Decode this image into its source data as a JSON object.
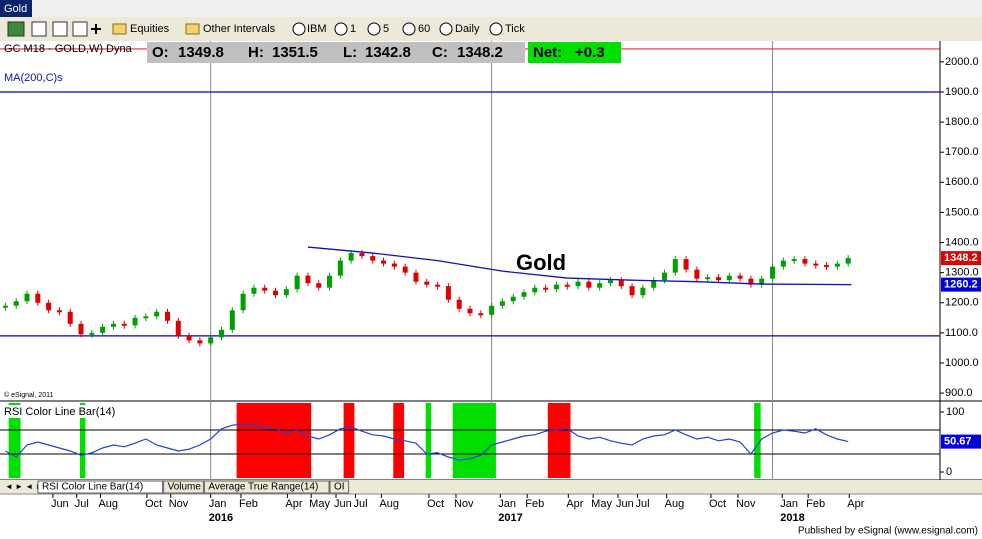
{
  "window_title": "Gold",
  "toolbar": {
    "buttons": [
      "Equities",
      "Other Intervals",
      "IBM",
      "1",
      "5",
      "60",
      "Daily",
      "Tick"
    ]
  },
  "chart_data": [
    {
      "type": "candlestick",
      "symbol": "GC M18 - GOLD,W) Dyna",
      "quote": [
        {
          "label": "O:",
          "value": 1349.8
        },
        {
          "label": "H:",
          "value": 1351.5
        },
        {
          "label": "L:",
          "value": 1342.8
        },
        {
          "label": "C:",
          "value": 1348.2
        }
      ],
      "net": {
        "label": "Net:",
        "value": "+0.3"
      },
      "annotation": "Gold",
      "watermark": "© eSignal, 2011",
      "xlim": [
        -0.5,
        86.5
      ],
      "xticks": [
        {
          "value": 4.4,
          "label": "Jun"
        },
        {
          "value": 6.6,
          "label": "Jul"
        },
        {
          "value": 8.8,
          "label": "Aug"
        },
        {
          "value": 13.1,
          "label": "Oct"
        },
        {
          "value": 15.3,
          "label": "Nov"
        },
        {
          "value": 19.0,
          "label": "Jan"
        },
        {
          "value": 21.8,
          "label": "Feb"
        },
        {
          "value": 26.1,
          "label": "Apr"
        },
        {
          "value": 28.3,
          "label": "May"
        },
        {
          "value": 30.6,
          "label": "Jun"
        },
        {
          "value": 32.4,
          "label": "Jul"
        },
        {
          "value": 34.8,
          "label": "Aug"
        },
        {
          "value": 39.2,
          "label": "Oct"
        },
        {
          "value": 41.7,
          "label": "Nov"
        },
        {
          "value": 45.8,
          "label": "Jan"
        },
        {
          "value": 48.3,
          "label": "Feb"
        },
        {
          "value": 52.1,
          "label": "Apr"
        },
        {
          "value": 54.4,
          "label": "May"
        },
        {
          "value": 56.7,
          "label": "Jun"
        },
        {
          "value": 58.5,
          "label": "Jul"
        },
        {
          "value": 61.2,
          "label": "Aug"
        },
        {
          "value": 65.3,
          "label": "Oct"
        },
        {
          "value": 67.8,
          "label": "Nov"
        },
        {
          "value": 71.9,
          "label": "Jan"
        },
        {
          "value": 74.3,
          "label": "Feb"
        },
        {
          "value": 78.1,
          "label": "Apr"
        }
      ],
      "year_labels": [
        {
          "value": 19.0,
          "label": "2016"
        },
        {
          "value": 45.8,
          "label": "2017"
        },
        {
          "value": 71.9,
          "label": "2018"
        }
      ],
      "separators": [
        19.0,
        45.0,
        71.0
      ],
      "ylim": [
        877,
        2066
      ],
      "yticks": [
        {
          "value": 900,
          "label": "900.0"
        },
        {
          "value": 1000,
          "label": "1000.0"
        },
        {
          "value": 1100,
          "label": "1100.0"
        },
        {
          "value": 1200,
          "label": "1200.0"
        },
        {
          "value": 1300,
          "label": "1300.0"
        },
        {
          "value": 1400,
          "label": "1400.0"
        },
        {
          "value": 1500,
          "label": "1500.0"
        },
        {
          "value": 1600,
          "label": "1600.0"
        },
        {
          "value": 1700,
          "label": "1700.0"
        },
        {
          "value": 1800,
          "label": "1800.0"
        },
        {
          "value": 1900,
          "label": "1900.0"
        },
        {
          "value": 2000,
          "label": "2000.0"
        }
      ],
      "hlines": [
        {
          "value": 2043,
          "color": "#e03030"
        },
        {
          "value": 1900,
          "color": "#0000cc"
        },
        {
          "value": 1090,
          "color": "#0000cc"
        }
      ],
      "series": [
        {
          "up_color": "#00a000",
          "down_color": "#e00000",
          "box_color": "#e00000",
          "values": [
            1190,
            1205,
            1230,
            1200,
            1175,
            1170,
            1130,
            1095,
            1100,
            1120,
            1130,
            1125,
            1150,
            1155,
            1170,
            1140,
            1090,
            1075,
            1065,
            1085,
            1110,
            1175,
            1230,
            1250,
            1240,
            1225,
            1245,
            1290,
            1265,
            1250,
            1290,
            1340,
            1365,
            1355,
            1340,
            1330,
            1320,
            1300,
            1270,
            1260,
            1255,
            1210,
            1180,
            1165,
            1160,
            1190,
            1205,
            1220,
            1235,
            1250,
            1245,
            1260,
            1255,
            1270,
            1250,
            1265,
            1275,
            1255,
            1225,
            1250,
            1275,
            1300,
            1345,
            1310,
            1280,
            1285,
            1275,
            1290,
            1280,
            1260,
            1280,
            1320,
            1340,
            1345,
            1330,
            1325,
            1320,
            1330,
            1348.2
          ]
        },
        {
          "name": "MA(200,C)s",
          "color": "#1010c0",
          "box_color": "#0000dd",
          "x": [
            28,
            34,
            40,
            46,
            52,
            58,
            64,
            70,
            78.3
          ],
          "values": [
            1385,
            1365,
            1340,
            1305,
            1282,
            1275,
            1270,
            1262,
            1260.2
          ]
        }
      ]
    },
    {
      "type": "line",
      "title": "RSI Color Line Bar(14)",
      "color": "#2040e0",
      "box_color": "#0000dd",
      "ylim": [
        -10,
        115
      ],
      "yticks": [
        0,
        100
      ],
      "levels": [
        70,
        30
      ],
      "zones": [
        {
          "start": 21.4,
          "end": 28.3,
          "color": "#ff0000"
        },
        {
          "start": 31.3,
          "end": 32.3,
          "color": "#ff0000"
        },
        {
          "start": 35.9,
          "end": 36.9,
          "color": "#ff0000"
        },
        {
          "start": 50.2,
          "end": 52.3,
          "color": "#ff0000"
        },
        {
          "start": 0.3,
          "end": 1.4,
          "color": "#00e000"
        },
        {
          "start": 6.9,
          "end": 7.4,
          "color": "#00e000"
        },
        {
          "start": 38.9,
          "end": 39.4,
          "color": "#00e000"
        },
        {
          "start": 41.4,
          "end": 45.4,
          "color": "#00e000"
        },
        {
          "start": 69.3,
          "end": 69.9,
          "color": "#00e000"
        }
      ],
      "values": [
        35,
        25,
        45,
        50,
        45,
        40,
        35,
        28,
        32,
        40,
        45,
        42,
        48,
        55,
        45,
        40,
        35,
        38,
        45,
        55,
        72,
        78,
        80,
        78,
        74,
        72,
        65,
        70,
        60,
        55,
        62,
        72,
        75,
        68,
        62,
        60,
        55,
        52,
        48,
        30,
        32,
        25,
        20,
        22,
        28,
        45,
        50,
        55,
        60,
        62,
        68,
        70,
        72,
        60,
        55,
        58,
        52,
        48,
        45,
        55,
        60,
        62,
        70,
        62,
        55,
        58,
        52,
        55,
        50,
        30,
        55,
        65,
        70,
        68,
        65,
        72,
        62,
        55,
        50.67
      ]
    }
  ],
  "tabs": [
    "RSI Color Line Bar(14)",
    "Volume",
    "Average True Range(14)",
    "OI"
  ],
  "footer": "Published by eSignal (www.esignal.com)"
}
